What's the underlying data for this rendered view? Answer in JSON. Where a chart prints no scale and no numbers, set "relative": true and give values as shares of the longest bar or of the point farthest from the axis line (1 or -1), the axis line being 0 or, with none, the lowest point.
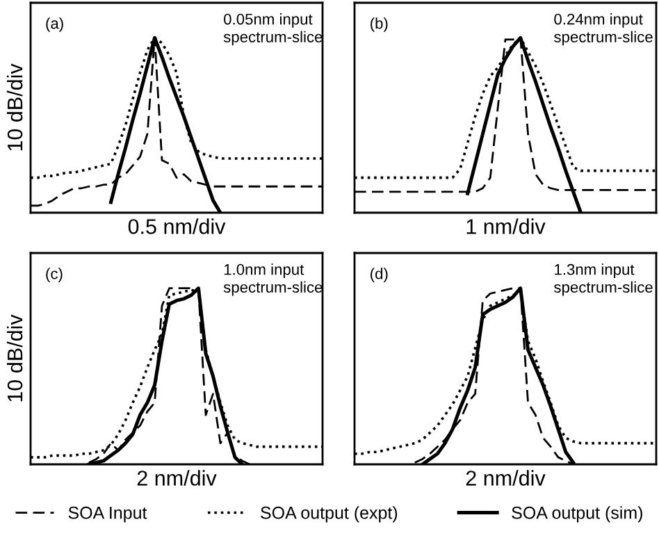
{
  "chart_data": [
    {
      "type": "line",
      "relative": true,
      "ylabel": "10 dB/div",
      "xlabel": "0.5 nm/div",
      "annotations": [
        "(a)",
        "0.05nm input\nspectrum-slice"
      ],
      "categories": [
        null,
        null,
        null,
        null,
        null,
        null,
        null,
        null,
        null,
        null,
        null,
        null,
        null,
        null,
        null,
        null,
        null,
        null,
        null,
        null,
        null,
        null,
        null,
        null,
        null,
        null,
        null,
        null,
        null,
        null,
        null,
        null,
        null,
        null,
        null,
        null,
        null,
        null,
        null,
        null,
        null
      ],
      "legend": "bottom",
      "marker": "none",
      "series": [
        {
          "name": "SOA Input",
          "color": "#000000",
          "line_style": "dashed",
          "values": [
            0.04,
            0.04,
            0.05,
            0.07,
            0.1,
            0.12,
            0.14,
            0.14,
            0.15,
            0.15,
            0.16,
            0.16,
            0.2,
            0.22,
            0.27,
            0.32,
            0.45,
            1.0,
            0.3,
            0.28,
            0.2,
            0.22,
            0.18,
            0.17,
            0.16,
            0.15,
            0.15,
            0.15,
            0.15,
            0.15,
            0.15,
            0.15,
            0.15,
            0.15,
            0.15,
            0.15,
            0.15,
            0.15,
            0.15,
            0.15,
            0.15
          ]
        },
        {
          "name": "SOA output (expt)",
          "color": "#000000",
          "line_style": "dotted",
          "values": [
            0.2,
            0.2,
            0.21,
            0.21,
            0.22,
            0.23,
            0.23,
            0.24,
            0.25,
            0.26,
            0.27,
            0.28,
            0.38,
            0.5,
            0.65,
            0.8,
            0.93,
            1.0,
            0.97,
            0.9,
            0.8,
            0.55,
            0.4,
            0.35,
            0.33,
            0.32,
            0.31,
            0.31,
            0.31,
            0.31,
            0.31,
            0.31,
            0.31,
            0.31,
            0.31,
            0.31,
            0.31,
            0.31,
            0.31,
            0.31,
            0.31
          ]
        },
        {
          "name": "SOA output (sim)",
          "color": "#000000",
          "line_style": "solid",
          "values": [
            null,
            null,
            null,
            null,
            null,
            null,
            null,
            null,
            null,
            null,
            null,
            0.06,
            0.22,
            0.37,
            0.53,
            0.68,
            0.84,
            1.0,
            0.89,
            0.77,
            0.66,
            0.55,
            0.43,
            0.31,
            0.19,
            0.07,
            0.0,
            null,
            null,
            null,
            null,
            null,
            null,
            null,
            null,
            null,
            null,
            null,
            null,
            null,
            null
          ]
        }
      ]
    },
    {
      "type": "line",
      "relative": true,
      "xlabel": "1 nm/div",
      "annotations": [
        "(b)",
        "0.24nm input\nspectrum-slice"
      ],
      "categories": [
        null,
        null,
        null,
        null,
        null,
        null,
        null,
        null,
        null,
        null,
        null,
        null,
        null,
        null,
        null,
        null,
        null,
        null,
        null,
        null,
        null,
        null,
        null,
        null,
        null,
        null,
        null,
        null,
        null,
        null,
        null,
        null,
        null,
        null,
        null,
        null,
        null,
        null,
        null,
        null,
        null
      ],
      "marker": "none",
      "series": [
        {
          "color": "#000000",
          "line_style": "dashed",
          "values": [
            0.12,
            0.12,
            0.12,
            0.12,
            0.12,
            0.12,
            0.12,
            0.12,
            0.12,
            0.12,
            0.12,
            0.12,
            0.12,
            0.12,
            0.12,
            0.12,
            0.12,
            0.14,
            0.2,
            0.6,
            0.99,
            0.99,
            1.0,
            0.45,
            0.22,
            0.16,
            0.14,
            0.13,
            0.13,
            0.13,
            0.13,
            0.13,
            0.13,
            0.13,
            0.13,
            0.13,
            0.13,
            0.13,
            0.13,
            0.13,
            0.13
          ]
        },
        {
          "color": "#000000",
          "line_style": "dotted",
          "values": [
            0.2,
            0.2,
            0.2,
            0.2,
            0.2,
            0.2,
            0.2,
            0.2,
            0.2,
            0.2,
            0.2,
            0.2,
            0.2,
            0.2,
            0.25,
            0.4,
            0.55,
            0.68,
            0.78,
            0.83,
            0.9,
            0.96,
            1.0,
            0.92,
            0.84,
            0.74,
            0.62,
            0.5,
            0.38,
            0.26,
            0.24,
            0.24,
            0.24,
            0.24,
            0.24,
            0.24,
            0.24,
            0.24,
            0.24,
            0.24,
            0.24
          ]
        },
        {
          "color": "#000000",
          "line_style": "solid",
          "values": [
            null,
            null,
            null,
            null,
            null,
            null,
            null,
            null,
            null,
            null,
            null,
            null,
            null,
            null,
            null,
            0.11,
            0.28,
            0.45,
            0.62,
            0.79,
            0.88,
            0.95,
            1.0,
            0.87,
            0.75,
            0.62,
            0.49,
            0.37,
            0.24,
            0.12,
            0.0,
            null,
            null,
            null,
            null,
            null,
            null,
            null,
            null,
            null,
            null
          ]
        }
      ]
    },
    {
      "type": "line",
      "relative": true,
      "ylabel": "10 dB/div",
      "xlabel": "2 nm/div",
      "annotations": [
        "(c)",
        "1.0nm input\nspectrum-slice"
      ],
      "categories": [
        null,
        null,
        null,
        null,
        null,
        null,
        null,
        null,
        null,
        null,
        null,
        null,
        null,
        null,
        null,
        null,
        null,
        null,
        null,
        null,
        null,
        null,
        null,
        null,
        null,
        null,
        null,
        null,
        null,
        null,
        null,
        null,
        null,
        null,
        null,
        null,
        null,
        null,
        null,
        null,
        null
      ],
      "marker": "none",
      "series": [
        {
          "color": "#000000",
          "line_style": "dashed",
          "values": [
            null,
            null,
            null,
            null,
            null,
            null,
            null,
            null,
            0.01,
            0.03,
            0.06,
            0.12,
            0.08,
            0.14,
            0.18,
            0.22,
            0.3,
            0.35,
            0.9,
            1.0,
            1.0,
            1.0,
            1.0,
            0.99,
            0.28,
            0.4,
            0.12,
            0.18,
            0.05,
            0.02,
            0.0,
            null,
            null,
            null,
            null,
            null,
            null,
            null,
            null,
            null,
            null
          ]
        },
        {
          "color": "#000000",
          "line_style": "dotted",
          "values": [
            0.04,
            0.04,
            0.04,
            0.05,
            0.05,
            0.05,
            0.05,
            0.06,
            0.06,
            0.07,
            0.08,
            0.11,
            0.17,
            0.25,
            0.35,
            0.44,
            0.55,
            0.65,
            0.74,
            0.96,
            0.97,
            0.98,
            0.99,
            0.98,
            0.65,
            0.5,
            0.35,
            0.22,
            0.14,
            0.12,
            0.11,
            0.1,
            0.1,
            0.1,
            0.1,
            0.1,
            0.1,
            0.1,
            0.1,
            0.1,
            0.1
          ]
        },
        {
          "color": "#000000",
          "line_style": "solid",
          "values": [
            null,
            null,
            null,
            null,
            null,
            null,
            null,
            null,
            0.0,
            0.01,
            0.02,
            0.05,
            0.08,
            0.12,
            0.17,
            0.28,
            0.35,
            0.45,
            0.7,
            0.91,
            0.93,
            0.94,
            0.96,
            1.0,
            0.63,
            0.5,
            0.33,
            0.18,
            0.04,
            0.0,
            null,
            null,
            null,
            null,
            null,
            null,
            null,
            null,
            null,
            null,
            null
          ]
        }
      ]
    },
    {
      "type": "line",
      "relative": true,
      "xlabel": "2 nm/div",
      "annotations": [
        "(d)",
        "1.3nm input\nspectrum-slice"
      ],
      "categories": [
        null,
        null,
        null,
        null,
        null,
        null,
        null,
        null,
        null,
        null,
        null,
        null,
        null,
        null,
        null,
        null,
        null,
        null,
        null,
        null,
        null,
        null,
        null,
        null,
        null,
        null,
        null,
        null,
        null,
        null,
        null,
        null,
        null,
        null,
        null,
        null,
        null,
        null,
        null,
        null,
        null
      ],
      "marker": "none",
      "series": [
        {
          "color": "#000000",
          "line_style": "dashed",
          "values": [
            null,
            null,
            null,
            null,
            null,
            null,
            null,
            null,
            0.01,
            0.03,
            0.06,
            0.1,
            0.14,
            0.2,
            0.25,
            0.35,
            0.4,
            0.93,
            0.97,
            0.98,
            0.99,
            1.0,
            1.0,
            0.35,
            0.28,
            0.15,
            0.1,
            0.04,
            0.02,
            0.0,
            null,
            null,
            null,
            null,
            null,
            null,
            null,
            null,
            null,
            null,
            null
          ]
        },
        {
          "color": "#000000",
          "line_style": "dotted",
          "values": [
            0.06,
            0.06,
            0.07,
            0.07,
            0.08,
            0.09,
            0.1,
            0.11,
            0.12,
            0.14,
            0.18,
            0.22,
            0.28,
            0.34,
            0.42,
            0.5,
            0.66,
            0.82,
            0.9,
            0.92,
            0.94,
            0.96,
            0.98,
            0.7,
            0.6,
            0.47,
            0.35,
            0.22,
            0.15,
            0.13,
            0.12,
            0.12,
            0.12,
            0.12,
            0.12,
            0.12,
            0.12,
            0.12,
            0.12,
            0.12,
            0.12
          ]
        },
        {
          "color": "#000000",
          "line_style": "solid",
          "values": [
            null,
            null,
            null,
            null,
            null,
            null,
            null,
            null,
            null,
            0.0,
            0.03,
            0.06,
            0.12,
            0.2,
            0.32,
            0.42,
            0.55,
            0.85,
            0.88,
            0.9,
            0.92,
            0.95,
            1.0,
            0.65,
            0.55,
            0.45,
            0.33,
            0.2,
            0.07,
            0.01,
            null,
            null,
            null,
            null,
            null,
            null,
            null,
            null,
            null,
            null,
            null
          ]
        }
      ]
    }
  ]
}
